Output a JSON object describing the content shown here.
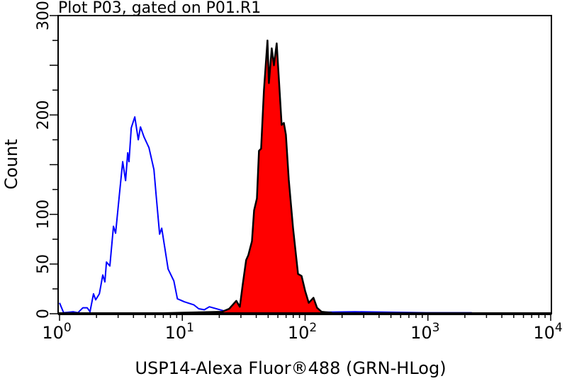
{
  "chart_data": {
    "type": "area",
    "title": "Plot P03, gated on P01.R1",
    "xlabel": "USP14-Alexa Fluor®488 (GRN-HLog)",
    "ylabel": "Count",
    "xscale": "log",
    "xlim": [
      1,
      10000
    ],
    "ylim": [
      0,
      300
    ],
    "x_ticks": [
      {
        "base": "10",
        "exp": "0",
        "value": 1
      },
      {
        "base": "10",
        "exp": "1",
        "value": 10
      },
      {
        "base": "10",
        "exp": "2",
        "value": 100
      },
      {
        "base": "10",
        "exp": "3",
        "value": 1000
      },
      {
        "base": "10",
        "exp": "4",
        "value": 10000
      }
    ],
    "y_ticks": [
      "0",
      "50",
      "100",
      "200",
      "300"
    ],
    "grid": false,
    "series": [
      {
        "style": "outline",
        "color": "#0000ff",
        "x": [
          1.0,
          1.08,
          1.29,
          1.41,
          1.55,
          1.68,
          1.77,
          1.89,
          1.97,
          2.11,
          2.25,
          2.34,
          2.41,
          2.57,
          2.75,
          2.86,
          3.06,
          3.27,
          3.45,
          3.59,
          3.68,
          3.84,
          4.1,
          4.38,
          4.56,
          4.87,
          5.35,
          5.87,
          6.11,
          6.53,
          6.8,
          7.66,
          8.53,
          9.12,
          10.4,
          12.4,
          13.6,
          15.1,
          16.6,
          23.1,
          67,
          254,
          961,
          2280
        ],
        "y": [
          11,
          1,
          2,
          1,
          6,
          6,
          2,
          20,
          14,
          20,
          39,
          32,
          52,
          48,
          88,
          81,
          118,
          153,
          134,
          162,
          153,
          187,
          198,
          175,
          188,
          178,
          167,
          145,
          120,
          80,
          86,
          45,
          33,
          15,
          12,
          9,
          5,
          4,
          7,
          2,
          1,
          2,
          1,
          1
        ]
      },
      {
        "style": "filled",
        "color": "#ff0000",
        "outline": "#000000",
        "x": [
          4.69,
          21.1,
          24.1,
          27.5,
          29.4,
          31.0,
          33.1,
          34.5,
          36.9,
          38.4,
          40.5,
          42.1,
          43.8,
          46.2,
          49.4,
          50.7,
          53.5,
          55.7,
          58.7,
          61.1,
          64.4,
          67.1,
          69.8,
          73.6,
          79.8,
          87.5,
          93.6,
          100,
          107,
          117,
          125,
          136,
          164
        ],
        "y": [
          0,
          2,
          5,
          13,
          7,
          29,
          54,
          59,
          73,
          104,
          116,
          164,
          166,
          225,
          275,
          232,
          267,
          250,
          272,
          237,
          190,
          192,
          180,
          135,
          86,
          40,
          38,
          23,
          11,
          16,
          6,
          2,
          1
        ]
      }
    ]
  }
}
